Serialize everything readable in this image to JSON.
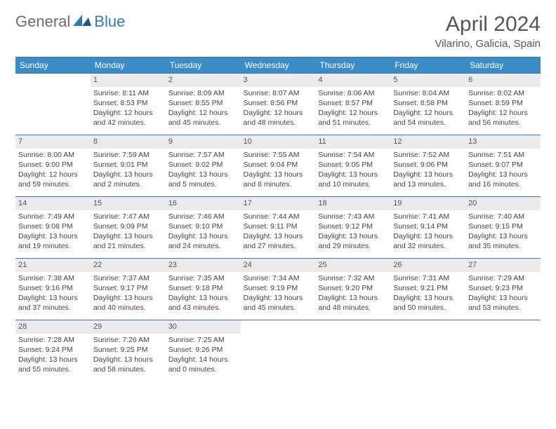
{
  "logo": {
    "general": "General",
    "blue": "Blue"
  },
  "title": "April 2024",
  "location": "Vilarino, Galicia, Spain",
  "colors": {
    "header_bg": "#3b8bc6",
    "header_border": "#2f7abf",
    "daynum_bg": "#ececec",
    "text": "#444444",
    "logo_gray": "#6b6b6b",
    "logo_blue": "#2f7abf"
  },
  "weekdays": [
    "Sunday",
    "Monday",
    "Tuesday",
    "Wednesday",
    "Thursday",
    "Friday",
    "Saturday"
  ],
  "weeks": [
    [
      {
        "day": "",
        "sunrise": "",
        "sunset": "",
        "daylight1": "",
        "daylight2": "",
        "empty": true
      },
      {
        "day": "1",
        "sunrise": "Sunrise: 8:11 AM",
        "sunset": "Sunset: 8:53 PM",
        "daylight1": "Daylight: 12 hours",
        "daylight2": "and 42 minutes."
      },
      {
        "day": "2",
        "sunrise": "Sunrise: 8:09 AM",
        "sunset": "Sunset: 8:55 PM",
        "daylight1": "Daylight: 12 hours",
        "daylight2": "and 45 minutes."
      },
      {
        "day": "3",
        "sunrise": "Sunrise: 8:07 AM",
        "sunset": "Sunset: 8:56 PM",
        "daylight1": "Daylight: 12 hours",
        "daylight2": "and 48 minutes."
      },
      {
        "day": "4",
        "sunrise": "Sunrise: 8:06 AM",
        "sunset": "Sunset: 8:57 PM",
        "daylight1": "Daylight: 12 hours",
        "daylight2": "and 51 minutes."
      },
      {
        "day": "5",
        "sunrise": "Sunrise: 8:04 AM",
        "sunset": "Sunset: 8:58 PM",
        "daylight1": "Daylight: 12 hours",
        "daylight2": "and 54 minutes."
      },
      {
        "day": "6",
        "sunrise": "Sunrise: 8:02 AM",
        "sunset": "Sunset: 8:59 PM",
        "daylight1": "Daylight: 12 hours",
        "daylight2": "and 56 minutes."
      }
    ],
    [
      {
        "day": "7",
        "sunrise": "Sunrise: 8:00 AM",
        "sunset": "Sunset: 9:00 PM",
        "daylight1": "Daylight: 12 hours",
        "daylight2": "and 59 minutes."
      },
      {
        "day": "8",
        "sunrise": "Sunrise: 7:59 AM",
        "sunset": "Sunset: 9:01 PM",
        "daylight1": "Daylight: 13 hours",
        "daylight2": "and 2 minutes."
      },
      {
        "day": "9",
        "sunrise": "Sunrise: 7:57 AM",
        "sunset": "Sunset: 9:02 PM",
        "daylight1": "Daylight: 13 hours",
        "daylight2": "and 5 minutes."
      },
      {
        "day": "10",
        "sunrise": "Sunrise: 7:55 AM",
        "sunset": "Sunset: 9:04 PM",
        "daylight1": "Daylight: 13 hours",
        "daylight2": "and 8 minutes."
      },
      {
        "day": "11",
        "sunrise": "Sunrise: 7:54 AM",
        "sunset": "Sunset: 9:05 PM",
        "daylight1": "Daylight: 13 hours",
        "daylight2": "and 10 minutes."
      },
      {
        "day": "12",
        "sunrise": "Sunrise: 7:52 AM",
        "sunset": "Sunset: 9:06 PM",
        "daylight1": "Daylight: 13 hours",
        "daylight2": "and 13 minutes."
      },
      {
        "day": "13",
        "sunrise": "Sunrise: 7:51 AM",
        "sunset": "Sunset: 9:07 PM",
        "daylight1": "Daylight: 13 hours",
        "daylight2": "and 16 minutes."
      }
    ],
    [
      {
        "day": "14",
        "sunrise": "Sunrise: 7:49 AM",
        "sunset": "Sunset: 9:08 PM",
        "daylight1": "Daylight: 13 hours",
        "daylight2": "and 19 minutes."
      },
      {
        "day": "15",
        "sunrise": "Sunrise: 7:47 AM",
        "sunset": "Sunset: 9:09 PM",
        "daylight1": "Daylight: 13 hours",
        "daylight2": "and 21 minutes."
      },
      {
        "day": "16",
        "sunrise": "Sunrise: 7:46 AM",
        "sunset": "Sunset: 9:10 PM",
        "daylight1": "Daylight: 13 hours",
        "daylight2": "and 24 minutes."
      },
      {
        "day": "17",
        "sunrise": "Sunrise: 7:44 AM",
        "sunset": "Sunset: 9:11 PM",
        "daylight1": "Daylight: 13 hours",
        "daylight2": "and 27 minutes."
      },
      {
        "day": "18",
        "sunrise": "Sunrise: 7:43 AM",
        "sunset": "Sunset: 9:12 PM",
        "daylight1": "Daylight: 13 hours",
        "daylight2": "and 29 minutes."
      },
      {
        "day": "19",
        "sunrise": "Sunrise: 7:41 AM",
        "sunset": "Sunset: 9:14 PM",
        "daylight1": "Daylight: 13 hours",
        "daylight2": "and 32 minutes."
      },
      {
        "day": "20",
        "sunrise": "Sunrise: 7:40 AM",
        "sunset": "Sunset: 9:15 PM",
        "daylight1": "Daylight: 13 hours",
        "daylight2": "and 35 minutes."
      }
    ],
    [
      {
        "day": "21",
        "sunrise": "Sunrise: 7:38 AM",
        "sunset": "Sunset: 9:16 PM",
        "daylight1": "Daylight: 13 hours",
        "daylight2": "and 37 minutes."
      },
      {
        "day": "22",
        "sunrise": "Sunrise: 7:37 AM",
        "sunset": "Sunset: 9:17 PM",
        "daylight1": "Daylight: 13 hours",
        "daylight2": "and 40 minutes."
      },
      {
        "day": "23",
        "sunrise": "Sunrise: 7:35 AM",
        "sunset": "Sunset: 9:18 PM",
        "daylight1": "Daylight: 13 hours",
        "daylight2": "and 43 minutes."
      },
      {
        "day": "24",
        "sunrise": "Sunrise: 7:34 AM",
        "sunset": "Sunset: 9:19 PM",
        "daylight1": "Daylight: 13 hours",
        "daylight2": "and 45 minutes."
      },
      {
        "day": "25",
        "sunrise": "Sunrise: 7:32 AM",
        "sunset": "Sunset: 9:20 PM",
        "daylight1": "Daylight: 13 hours",
        "daylight2": "and 48 minutes."
      },
      {
        "day": "26",
        "sunrise": "Sunrise: 7:31 AM",
        "sunset": "Sunset: 9:21 PM",
        "daylight1": "Daylight: 13 hours",
        "daylight2": "and 50 minutes."
      },
      {
        "day": "27",
        "sunrise": "Sunrise: 7:29 AM",
        "sunset": "Sunset: 9:23 PM",
        "daylight1": "Daylight: 13 hours",
        "daylight2": "and 53 minutes."
      }
    ],
    [
      {
        "day": "28",
        "sunrise": "Sunrise: 7:28 AM",
        "sunset": "Sunset: 9:24 PM",
        "daylight1": "Daylight: 13 hours",
        "daylight2": "and 55 minutes."
      },
      {
        "day": "29",
        "sunrise": "Sunrise: 7:26 AM",
        "sunset": "Sunset: 9:25 PM",
        "daylight1": "Daylight: 13 hours",
        "daylight2": "and 58 minutes."
      },
      {
        "day": "30",
        "sunrise": "Sunrise: 7:25 AM",
        "sunset": "Sunset: 9:26 PM",
        "daylight1": "Daylight: 14 hours",
        "daylight2": "and 0 minutes."
      },
      {
        "day": "",
        "sunrise": "",
        "sunset": "",
        "daylight1": "",
        "daylight2": "",
        "empty": true
      },
      {
        "day": "",
        "sunrise": "",
        "sunset": "",
        "daylight1": "",
        "daylight2": "",
        "empty": true
      },
      {
        "day": "",
        "sunrise": "",
        "sunset": "",
        "daylight1": "",
        "daylight2": "",
        "empty": true
      },
      {
        "day": "",
        "sunrise": "",
        "sunset": "",
        "daylight1": "",
        "daylight2": "",
        "empty": true
      }
    ]
  ]
}
